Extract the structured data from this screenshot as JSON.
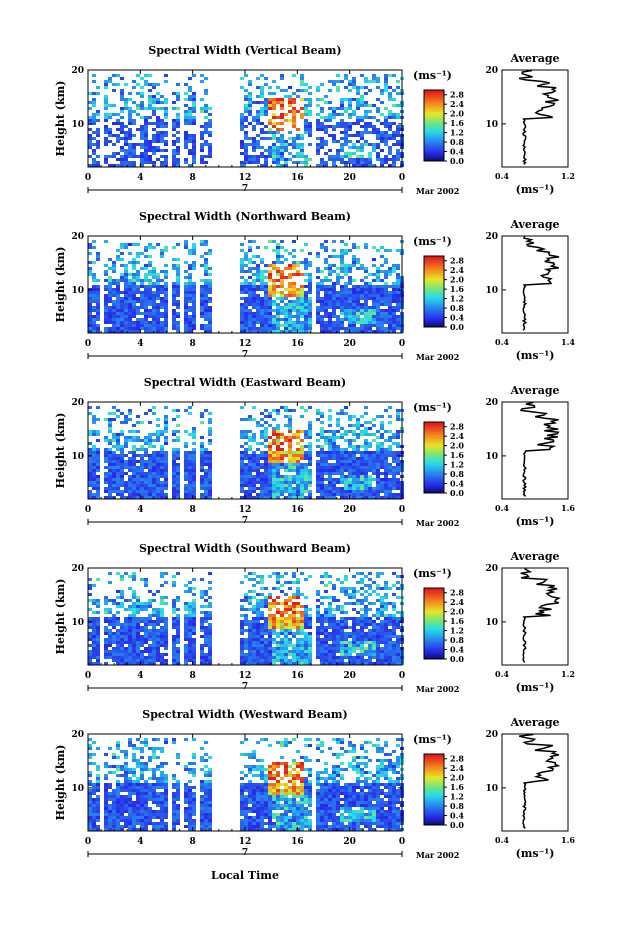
{
  "figure": {
    "xlabel": "Local Time",
    "date_label": "Mar 2002",
    "day_label": "7"
  },
  "chart_data": [
    {
      "type": "heatmap",
      "title": "Spectral Width (Vertical Beam)",
      "ylabel": "Height (km)",
      "xticks": [
        "0",
        "4",
        "8",
        "12",
        "16",
        "20",
        "0"
      ],
      "yticks": [
        "10",
        "20"
      ],
      "xlim_hours": [
        0,
        24
      ],
      "ylim_km": [
        2,
        20
      ],
      "colorbar": {
        "unit": "(ms⁻¹)",
        "ticks": [
          "2.8",
          "2.4",
          "2.0",
          "1.6",
          "1.2",
          "0.8",
          "0.4",
          "0.0"
        ],
        "range": [
          0,
          3.0
        ]
      },
      "average_profile": {
        "title": "Average",
        "xlabel": "(ms⁻¹)",
        "xticks": [
          "0.4",
          "1.2"
        ],
        "yticks": [
          "10",
          "20"
        ],
        "xlim": [
          0.4,
          1.2
        ]
      }
    },
    {
      "type": "heatmap",
      "title": "Spectral Width (Northward Beam)",
      "ylabel": "Height (km)",
      "xticks": [
        "0",
        "4",
        "8",
        "12",
        "16",
        "20",
        "0"
      ],
      "yticks": [
        "10",
        "20"
      ],
      "xlim_hours": [
        0,
        24
      ],
      "ylim_km": [
        2,
        20
      ],
      "colorbar": {
        "unit": "(ms⁻¹)",
        "ticks": [
          "2.8",
          "2.4",
          "2.0",
          "1.6",
          "1.2",
          "0.8",
          "0.4",
          "0.0"
        ],
        "range": [
          0,
          3.0
        ]
      },
      "average_profile": {
        "title": "Average",
        "xlabel": "(ms⁻¹)",
        "xticks": [
          "0.4",
          "1.4"
        ],
        "yticks": [
          "10",
          "20"
        ],
        "xlim": [
          0.4,
          1.4
        ]
      }
    },
    {
      "type": "heatmap",
      "title": "Spectral Width (Eastward Beam)",
      "ylabel": "Height (km)",
      "xticks": [
        "0",
        "4",
        "8",
        "12",
        "16",
        "20",
        "0"
      ],
      "yticks": [
        "10",
        "20"
      ],
      "xlim_hours": [
        0,
        24
      ],
      "ylim_km": [
        2,
        20
      ],
      "colorbar": {
        "unit": "(ms⁻¹)",
        "ticks": [
          "2.8",
          "2.4",
          "2.0",
          "1.6",
          "1.2",
          "0.8",
          "0.4",
          "0.0"
        ],
        "range": [
          0,
          3.0
        ]
      },
      "average_profile": {
        "title": "Average",
        "xlabel": "(ms⁻¹)",
        "xticks": [
          "0.4",
          "1.6"
        ],
        "yticks": [
          "10",
          "20"
        ],
        "xlim": [
          0.4,
          1.6
        ]
      }
    },
    {
      "type": "heatmap",
      "title": "Spectral Width (Southward Beam)",
      "ylabel": "Height (km)",
      "xticks": [
        "0",
        "4",
        "8",
        "12",
        "16",
        "20",
        "0"
      ],
      "yticks": [
        "10",
        "20"
      ],
      "xlim_hours": [
        0,
        24
      ],
      "ylim_km": [
        2,
        20
      ],
      "colorbar": {
        "unit": "(ms⁻¹)",
        "ticks": [
          "2.8",
          "2.4",
          "2.0",
          "1.6",
          "1.2",
          "0.8",
          "0.4",
          "0.0"
        ],
        "range": [
          0,
          3.0
        ]
      },
      "average_profile": {
        "title": "Average",
        "xlabel": "(ms⁻¹)",
        "xticks": [
          "0.4",
          "1.2"
        ],
        "yticks": [
          "10",
          "20"
        ],
        "xlim": [
          0.4,
          1.2
        ]
      }
    },
    {
      "type": "heatmap",
      "title": "Spectral Width (Westward Beam)",
      "ylabel": "Height (km)",
      "xticks": [
        "0",
        "4",
        "8",
        "12",
        "16",
        "20",
        "0"
      ],
      "yticks": [
        "10",
        "20"
      ],
      "xlim_hours": [
        0,
        24
      ],
      "ylim_km": [
        2,
        20
      ],
      "colorbar": {
        "unit": "(ms⁻¹)",
        "ticks": [
          "2.8",
          "2.4",
          "2.0",
          "1.6",
          "1.2",
          "0.8",
          "0.4",
          "0.0"
        ],
        "range": [
          0,
          3.0
        ]
      },
      "average_profile": {
        "title": "Average",
        "xlabel": "(ms⁻¹)",
        "xticks": [
          "0.4",
          "1.6"
        ],
        "yticks": [
          "10",
          "20"
        ],
        "xlim": [
          0.4,
          1.6
        ]
      }
    }
  ]
}
